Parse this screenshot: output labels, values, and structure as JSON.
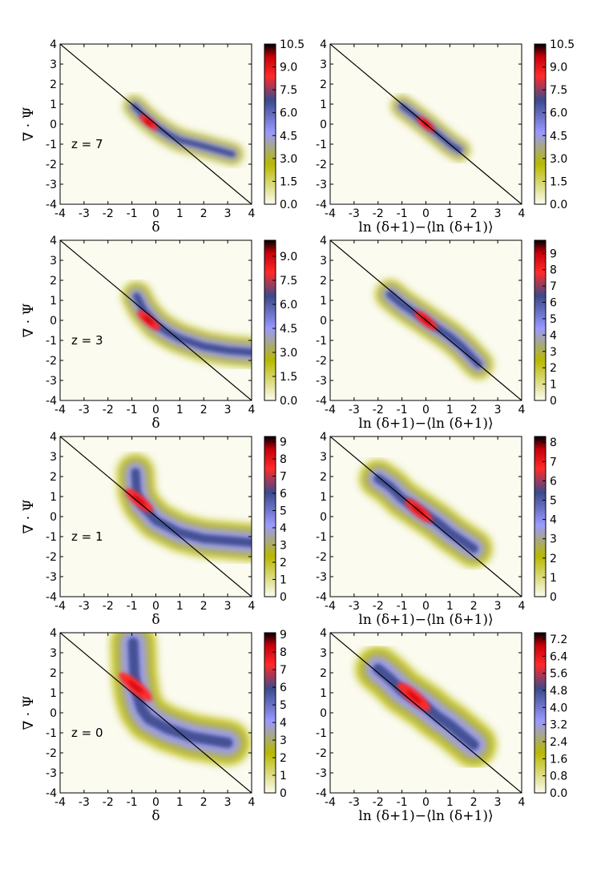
{
  "colors": {
    "cmap": [
      "#fbfbf0",
      "#b8b800",
      "#9999ff",
      "#3b4a8c",
      "#ff2a2a",
      "#c8000a",
      "#000000"
    ],
    "line": "#000000"
  },
  "chart_data": [
    {
      "type": "heatmap",
      "panel": "z7-delta",
      "annotation": "z = 7",
      "xlabel": "δ",
      "ylabel": "∇ · Ψ",
      "xlim": [
        -4,
        4
      ],
      "ylim": [
        -4,
        4
      ],
      "xticks": [
        "-4",
        "-3",
        "-2",
        "-1",
        "0",
        "1",
        "2",
        "3",
        "4"
      ],
      "yticks": [
        "4",
        "3",
        "2",
        "1",
        "0",
        "-1",
        "-2",
        "-3",
        "-4"
      ],
      "colorbar": {
        "max": 10.5,
        "ticks": [
          "10.5",
          "9.0",
          "7.5",
          "6.0",
          "4.5",
          "3.0",
          "1.5",
          "0.0"
        ]
      },
      "reference_line": {
        "from": [
          -4,
          4
        ],
        "to": [
          4,
          -4
        ]
      },
      "density_ridge": [
        [
          -0.9,
          0.9
        ],
        [
          -0.5,
          0.4
        ],
        [
          0.0,
          -0.1
        ],
        [
          0.5,
          -0.5
        ],
        [
          1.0,
          -0.8
        ],
        [
          2.0,
          -1.1
        ],
        [
          3.2,
          -1.5
        ]
      ],
      "peak": [
        -0.3,
        0.1
      ]
    },
    {
      "type": "heatmap",
      "panel": "z7-log",
      "xlabel": "ln (δ+1)−⟨ln (δ+1)⟩",
      "ylabel": "",
      "xlim": [
        -4,
        4
      ],
      "ylim": [
        -4,
        4
      ],
      "xticks": [
        "-4",
        "-3",
        "-2",
        "-1",
        "0",
        "1",
        "2",
        "3",
        "4"
      ],
      "yticks": [
        "4",
        "3",
        "2",
        "1",
        "0",
        "-1",
        "-2",
        "-3",
        "-4"
      ],
      "colorbar": {
        "max": 10.5,
        "ticks": [
          "10.5",
          "9.0",
          "7.5",
          "6.0",
          "4.5",
          "3.0",
          "1.5",
          "0.0"
        ]
      },
      "reference_line": {
        "from": [
          -4,
          4
        ],
        "to": [
          4,
          -4
        ]
      },
      "density_ridge": [
        [
          -1.0,
          0.9
        ],
        [
          -0.5,
          0.45
        ],
        [
          0.0,
          0.0
        ],
        [
          0.5,
          -0.5
        ],
        [
          1.0,
          -1.0
        ],
        [
          1.4,
          -1.3
        ]
      ],
      "peak": [
        0.0,
        0.0
      ]
    },
    {
      "type": "heatmap",
      "panel": "z3-delta",
      "annotation": "z = 3",
      "xlabel": "δ",
      "ylabel": "∇ · Ψ",
      "xlim": [
        -4,
        4
      ],
      "ylim": [
        -4,
        4
      ],
      "xticks": [
        "-4",
        "-3",
        "-2",
        "-1",
        "0",
        "1",
        "2",
        "3",
        "4"
      ],
      "yticks": [
        "4",
        "3",
        "2",
        "1",
        "0",
        "-1",
        "-2",
        "-3",
        "-4"
      ],
      "colorbar": {
        "max": 10,
        "ticks": [
          "9.0",
          "7.5",
          "6.0",
          "4.5",
          "3.0",
          "1.5",
          "0.0"
        ]
      },
      "reference_line": {
        "from": [
          -4,
          4
        ],
        "to": [
          4,
          -4
        ]
      },
      "density_ridge": [
        [
          -0.8,
          1.2
        ],
        [
          -0.5,
          0.5
        ],
        [
          0.0,
          -0.2
        ],
        [
          0.5,
          -0.6
        ],
        [
          1.0,
          -0.9
        ],
        [
          2.0,
          -1.3
        ],
        [
          3.0,
          -1.5
        ],
        [
          4.0,
          -1.6
        ]
      ],
      "peak": [
        -0.3,
        0.0
      ]
    },
    {
      "type": "heatmap",
      "panel": "z3-log",
      "xlabel": "ln (δ+1)−⟨ln (δ+1)⟩",
      "ylabel": "",
      "xlim": [
        -4,
        4
      ],
      "ylim": [
        -4,
        4
      ],
      "xticks": [
        "-4",
        "-3",
        "-2",
        "-1",
        "0",
        "1",
        "2",
        "3",
        "4"
      ],
      "yticks": [
        "4",
        "3",
        "2",
        "1",
        "0",
        "-1",
        "-2",
        "-3",
        "-4"
      ],
      "colorbar": {
        "max": 9.8,
        "ticks": [
          "9",
          "8",
          "7",
          "6",
          "5",
          "4",
          "3",
          "2",
          "1",
          "0"
        ]
      },
      "reference_line": {
        "from": [
          -4,
          4
        ],
        "to": [
          4,
          -4
        ]
      },
      "density_ridge": [
        [
          -1.5,
          1.3
        ],
        [
          -1.0,
          0.8
        ],
        [
          -0.5,
          0.4
        ],
        [
          0.0,
          0.0
        ],
        [
          0.5,
          -0.4
        ],
        [
          1.0,
          -0.8
        ],
        [
          1.5,
          -1.3
        ],
        [
          2.2,
          -2.2
        ]
      ],
      "peak": [
        0.0,
        0.0
      ]
    },
    {
      "type": "heatmap",
      "panel": "z1-delta",
      "annotation": "z = 1",
      "xlabel": "δ",
      "ylabel": "∇ · Ψ",
      "xlim": [
        -4,
        4
      ],
      "ylim": [
        -4,
        4
      ],
      "xticks": [
        "-4",
        "-3",
        "-2",
        "-1",
        "0",
        "1",
        "2",
        "3",
        "4"
      ],
      "yticks": [
        "4",
        "3",
        "2",
        "1",
        "0",
        "-1",
        "-2",
        "-3",
        "-4"
      ],
      "colorbar": {
        "max": 9.3,
        "ticks": [
          "9",
          "8",
          "7",
          "6",
          "5",
          "4",
          "3",
          "2",
          "1",
          "0"
        ]
      },
      "reference_line": {
        "from": [
          -4,
          4
        ],
        "to": [
          4,
          -4
        ]
      },
      "density_ridge": [
        [
          -0.85,
          2.2
        ],
        [
          -0.8,
          1.2
        ],
        [
          -0.6,
          0.6
        ],
        [
          -0.3,
          0.2
        ],
        [
          0.0,
          -0.2
        ],
        [
          1.0,
          -0.8
        ],
        [
          2.0,
          -1.1
        ],
        [
          3.0,
          -1.2
        ],
        [
          4.0,
          -1.3
        ]
      ],
      "peak": [
        -0.7,
        0.8
      ]
    },
    {
      "type": "heatmap",
      "panel": "z1-log",
      "xlabel": "ln (δ+1)−⟨ln (δ+1)⟩",
      "ylabel": "",
      "xlim": [
        -4,
        4
      ],
      "ylim": [
        -4,
        4
      ],
      "xticks": [
        "-4",
        "-3",
        "-2",
        "-1",
        "0",
        "1",
        "2",
        "3",
        "4"
      ],
      "yticks": [
        "4",
        "3",
        "2",
        "1",
        "0",
        "-1",
        "-2",
        "-3",
        "-4"
      ],
      "colorbar": {
        "max": 8.3,
        "ticks": [
          "8",
          "7",
          "6",
          "5",
          "4",
          "3",
          "2",
          "1",
          "0"
        ]
      },
      "reference_line": {
        "from": [
          -4,
          4
        ],
        "to": [
          4,
          -4
        ]
      },
      "density_ridge": [
        [
          -2.0,
          1.9
        ],
        [
          -1.5,
          1.5
        ],
        [
          -1.0,
          0.9
        ],
        [
          -0.5,
          0.5
        ],
        [
          0.0,
          0.1
        ],
        [
          0.5,
          -0.3
        ],
        [
          1.0,
          -0.8
        ],
        [
          2.0,
          -1.6
        ]
      ],
      "peak": [
        -0.3,
        0.3
      ]
    },
    {
      "type": "heatmap",
      "panel": "z0-delta",
      "annotation": "z = 0",
      "xlabel": "δ",
      "ylabel": "∇ · Ψ",
      "xlim": [
        -4,
        4
      ],
      "ylim": [
        -4,
        4
      ],
      "xticks": [
        "-4",
        "-3",
        "-2",
        "-1",
        "0",
        "1",
        "2",
        "3",
        "4"
      ],
      "yticks": [
        "4",
        "3",
        "2",
        "1",
        "0",
        "-1",
        "-2",
        "-3",
        "-4"
      ],
      "colorbar": {
        "max": 9.1,
        "ticks": [
          "9",
          "8",
          "7",
          "6",
          "5",
          "4",
          "3",
          "2",
          "1",
          "0"
        ]
      },
      "reference_line": {
        "from": [
          -4,
          4
        ],
        "to": [
          4,
          -4
        ]
      },
      "density_ridge": [
        [
          -0.95,
          3.5
        ],
        [
          -0.9,
          2.0
        ],
        [
          -0.8,
          1.0
        ],
        [
          -0.6,
          0.2
        ],
        [
          -0.3,
          -0.3
        ],
        [
          0.5,
          -0.8
        ],
        [
          1.5,
          -1.2
        ],
        [
          3.0,
          -1.5
        ]
      ],
      "peak": [
        -0.85,
        1.3
      ]
    },
    {
      "type": "heatmap",
      "panel": "z0-log",
      "xlabel": "ln (δ+1)−⟨ln (δ+1)⟩",
      "ylabel": "",
      "xlim": [
        -4,
        4
      ],
      "ylim": [
        -4,
        4
      ],
      "xticks": [
        "-4",
        "-3",
        "-2",
        "-1",
        "0",
        "1",
        "2",
        "3",
        "4"
      ],
      "yticks": [
        "4",
        "3",
        "2",
        "1",
        "0",
        "-1",
        "-2",
        "-3",
        "-4"
      ],
      "colorbar": {
        "max": 7.5,
        "ticks": [
          "7.2",
          "6.4",
          "5.6",
          "4.8",
          "4.0",
          "3.2",
          "2.4",
          "1.6",
          "0.8",
          "0.0"
        ]
      },
      "reference_line": {
        "from": [
          -4,
          4
        ],
        "to": [
          4,
          -4
        ]
      },
      "density_ridge": [
        [
          -2.0,
          2.2
        ],
        [
          -1.5,
          1.7
        ],
        [
          -1.0,
          1.1
        ],
        [
          -0.5,
          0.7
        ],
        [
          0.0,
          0.3
        ],
        [
          0.5,
          -0.2
        ],
        [
          1.0,
          -0.6
        ],
        [
          2.0,
          -1.6
        ]
      ],
      "peak": [
        -0.5,
        0.8
      ]
    }
  ]
}
